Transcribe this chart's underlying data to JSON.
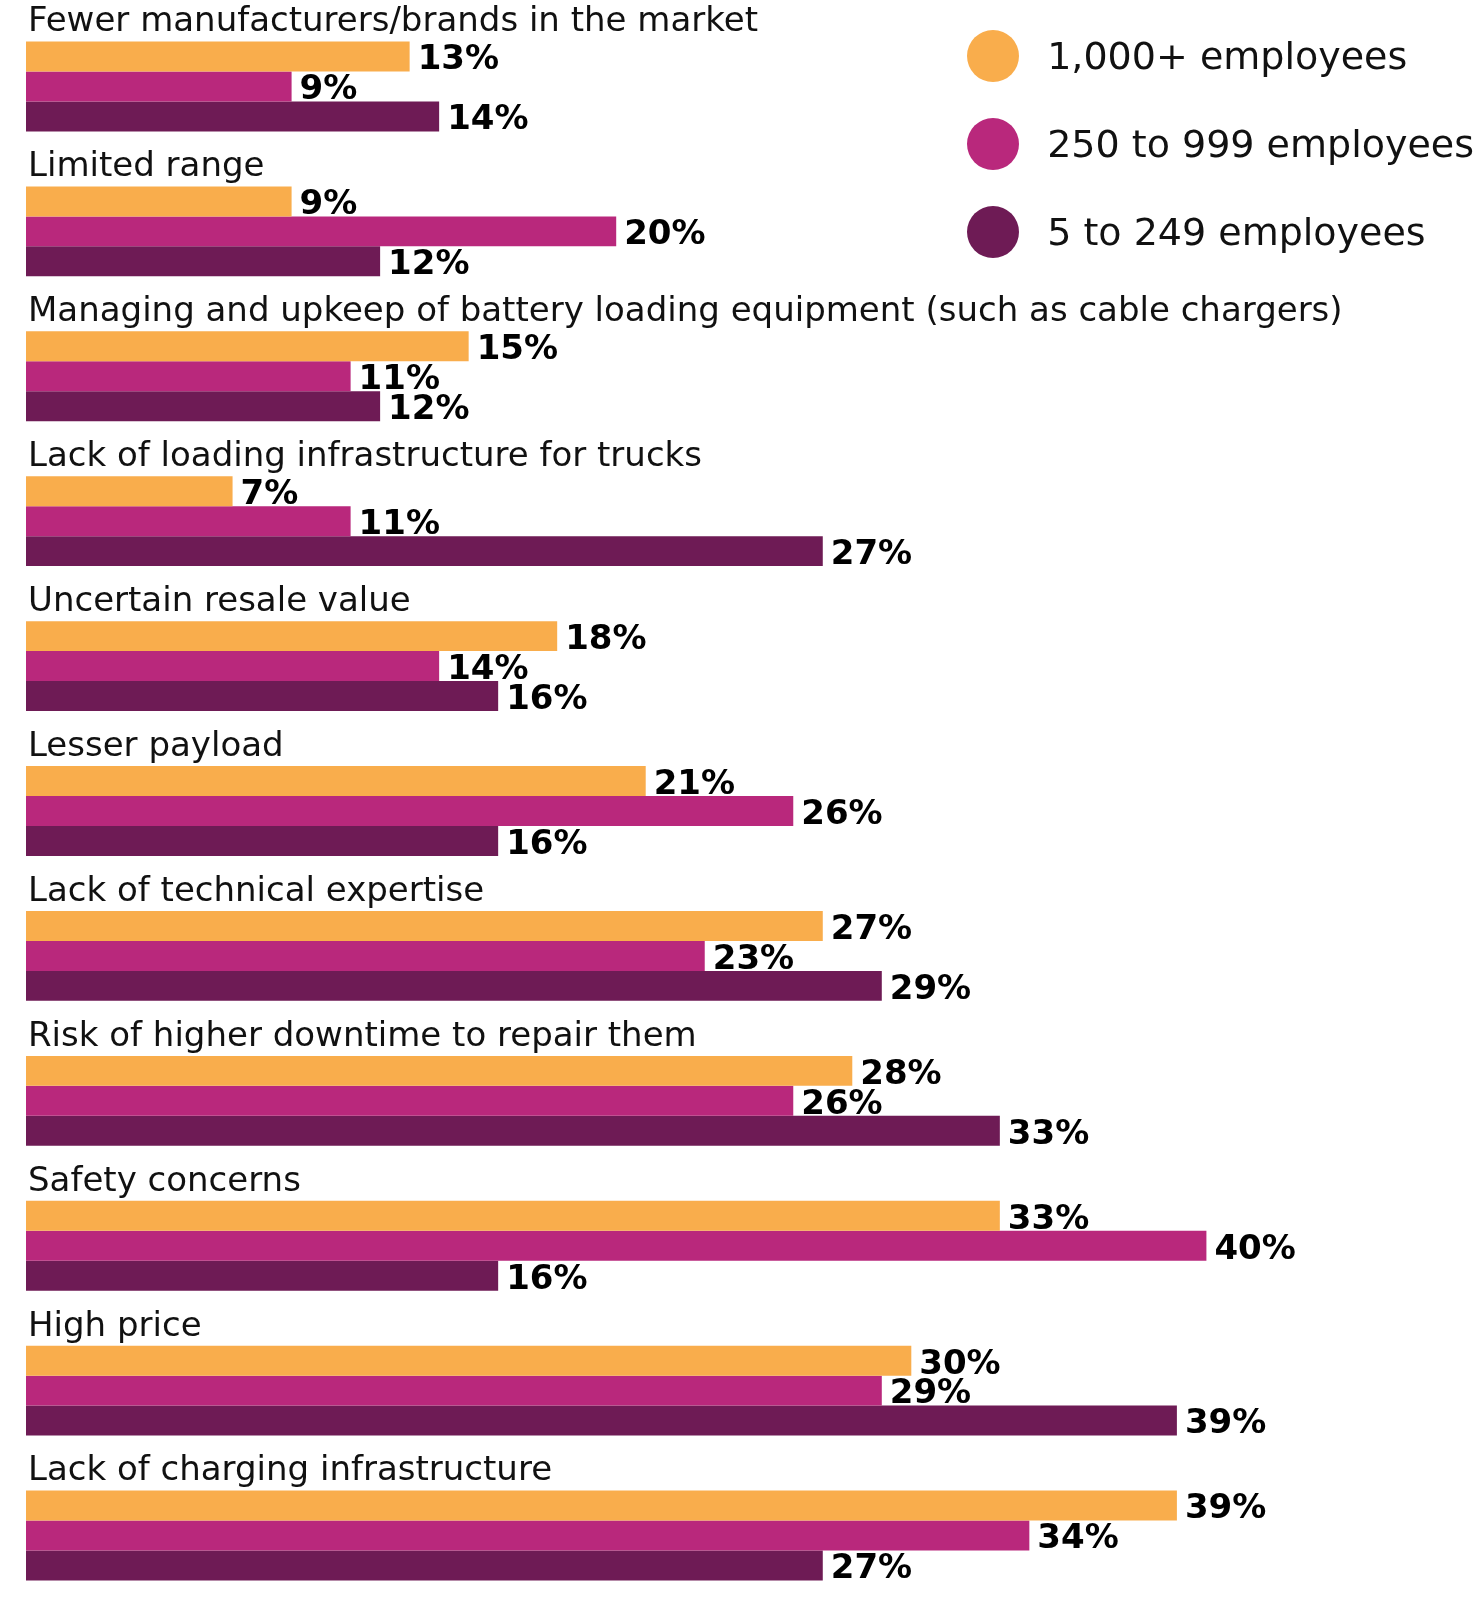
{
  "chart_data": {
    "type": "bar",
    "orientation": "horizontal",
    "categories": [
      "Fewer manufacturers/brands in the market",
      "Limited range",
      "Managing and upkeep of battery loading equipment (such as cable chargers)",
      "Lack of loading infrastructure for trucks",
      "Uncertain resale value",
      "Lesser payload",
      "Lack of technical expertise",
      "Risk of higher downtime to repair them",
      "Safety concerns",
      "High price",
      "Lack of charging infrastructure"
    ],
    "series": [
      {
        "name": "1,000+ employees",
        "color": "#f9ad4c",
        "values": [
          13,
          9,
          15,
          7,
          18,
          21,
          27,
          28,
          33,
          30,
          39
        ],
        "value_labels": [
          "13%",
          "9%",
          "15%",
          "7%",
          "18%",
          "21%",
          "27%",
          "28%",
          "33%",
          "30%",
          "39%"
        ]
      },
      {
        "name": "250 to 999 employees",
        "color": "#b9287c",
        "values": [
          9,
          20,
          11,
          11,
          14,
          26,
          23,
          26,
          40,
          29,
          34
        ],
        "value_labels": [
          "9%",
          "20%",
          "11%",
          "11%",
          "14%",
          "26%",
          "23%",
          "26%",
          "40%",
          "29%",
          "34%"
        ]
      },
      {
        "name": "5 to 249 employees",
        "color": "#6e1b55",
        "values": [
          14,
          12,
          12,
          27,
          16,
          16,
          29,
          33,
          16,
          39,
          27
        ],
        "value_labels": [
          "14%",
          "12%",
          "12%",
          "27%",
          "16%",
          "16%",
          "29%",
          "33%",
          "16%",
          "39%",
          "27%"
        ]
      }
    ],
    "tick_labels": "y",
    "legend": "top right"
  }
}
